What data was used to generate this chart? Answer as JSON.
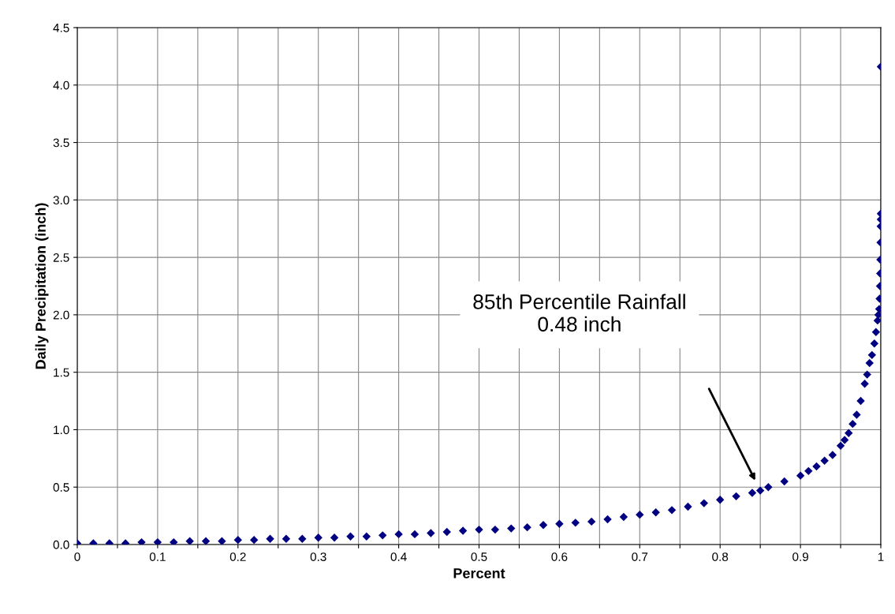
{
  "chart_data": {
    "type": "scatter",
    "xlabel": "Percent",
    "ylabel": "Daily Precipitation (inch)",
    "marker": "diamond",
    "grid": true,
    "xlim": [
      0,
      1
    ],
    "ylim": [
      0,
      4.5
    ],
    "xticks": [
      0,
      {
        "value": 0.05,
        "label": null
      },
      0.1,
      {
        "value": 0.15,
        "label": null
      },
      0.2,
      {
        "value": 0.25,
        "label": null
      },
      0.3,
      {
        "value": 0.35,
        "label": null
      },
      0.4,
      {
        "value": 0.45,
        "label": null
      },
      0.5,
      {
        "value": 0.55,
        "label": null
      },
      0.6,
      {
        "value": 0.65,
        "label": null
      },
      0.7,
      {
        "value": 0.75,
        "label": null
      },
      0.8,
      {
        "value": 0.85,
        "label": null
      },
      0.9,
      {
        "value": 0.95,
        "label": null
      },
      1
    ],
    "yticks": [
      {
        "value": 0,
        "label": "0.0"
      },
      0.5,
      {
        "value": 1,
        "label": "1.0"
      },
      1.5,
      {
        "value": 2,
        "label": "2.0"
      },
      2.5,
      {
        "value": 3,
        "label": "3.0"
      },
      3.5,
      {
        "value": 4,
        "label": "4.0"
      },
      4.5
    ],
    "annotations": [
      "85th Percentile Rainfall\n0.48 inch"
    ],
    "series": [
      {
        "color": "#000080",
        "x": [
          0,
          0.02,
          0.04,
          0.06,
          0.08,
          0.1,
          0.12,
          0.14,
          0.16,
          0.18,
          0.2,
          0.22,
          0.24,
          0.26,
          0.28,
          0.3,
          0.32,
          0.34,
          0.36,
          0.38,
          0.4,
          0.42,
          0.44,
          0.46,
          0.48,
          0.5,
          0.52,
          0.54,
          0.56,
          0.58,
          0.6,
          0.62,
          0.64,
          0.66,
          0.68,
          0.7,
          0.72,
          0.74,
          0.76,
          0.78,
          0.8,
          0.82,
          0.84,
          0.85,
          0.86,
          0.88,
          0.9,
          0.91,
          0.92,
          0.93,
          0.94,
          0.95,
          0.955,
          0.96,
          0.965,
          0.97,
          0.975,
          0.98,
          0.983,
          0.986,
          0.989,
          0.992,
          0.994,
          0.996,
          0.997,
          0.998,
          0.9985,
          0.999,
          0.9992,
          0.9994,
          0.9996,
          0.9998,
          0.9999,
          1,
          1
        ],
        "values": [
          0.01,
          0.01,
          0.01,
          0.01,
          0.02,
          0.02,
          0.02,
          0.03,
          0.03,
          0.03,
          0.04,
          0.04,
          0.05,
          0.05,
          0.05,
          0.06,
          0.06,
          0.07,
          0.07,
          0.08,
          0.09,
          0.09,
          0.1,
          0.11,
          0.12,
          0.13,
          0.13,
          0.14,
          0.15,
          0.17,
          0.18,
          0.19,
          0.2,
          0.22,
          0.24,
          0.26,
          0.28,
          0.3,
          0.33,
          0.36,
          0.39,
          0.42,
          0.45,
          0.47,
          0.5,
          0.55,
          0.6,
          0.64,
          0.68,
          0.73,
          0.78,
          0.86,
          0.91,
          0.97,
          1.05,
          1.13,
          1.25,
          1.4,
          1.48,
          1.58,
          1.65,
          1.75,
          1.85,
          1.95,
          2.0,
          2.05,
          2.14,
          2.25,
          2.36,
          2.48,
          2.63,
          2.77,
          2.83,
          2.88,
          4.16
        ]
      }
    ]
  }
}
